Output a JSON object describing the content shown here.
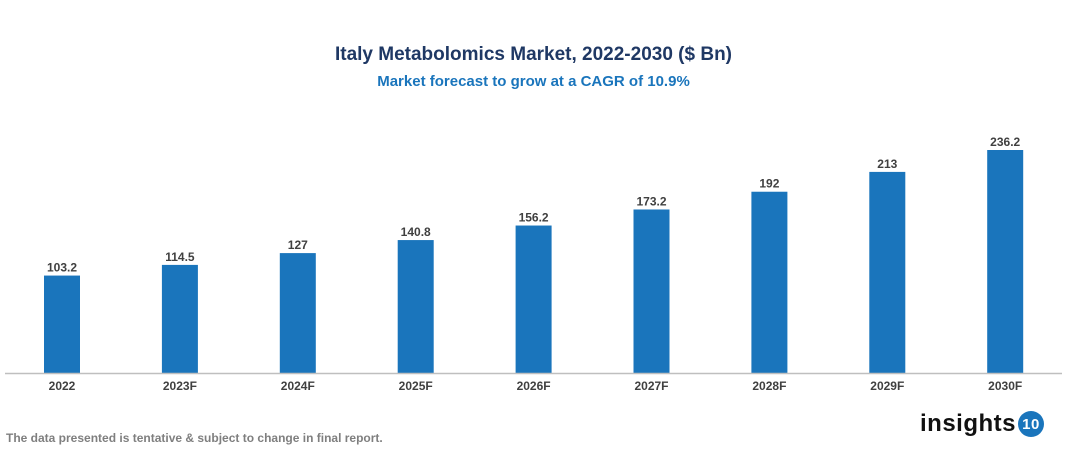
{
  "chart_data": {
    "type": "bar",
    "title": "Italy Metabolomics Market, 2022-2030 ($ Bn)",
    "subtitle": "Market forecast to grow at a CAGR of 10.9%",
    "categories": [
      "2022",
      "2023F",
      "2024F",
      "2025F",
      "2026F",
      "2027F",
      "2028F",
      "2029F",
      "2030F"
    ],
    "values": [
      103.2,
      114.5,
      127,
      140.8,
      156.2,
      173.2,
      192,
      213,
      236.2
    ],
    "labels": [
      "103.2",
      "114.5",
      "127",
      "140.8",
      "156.2",
      "173.2",
      "192",
      "213",
      "236.2"
    ],
    "xlabel": "",
    "ylabel": "",
    "ylim": [
      0,
      236.2
    ],
    "grid": false,
    "bar_color": "#1a75bc"
  },
  "footer": "The data presented is tentative & subject to change in final report.",
  "logo": {
    "text": "insights",
    "badge": "10"
  }
}
